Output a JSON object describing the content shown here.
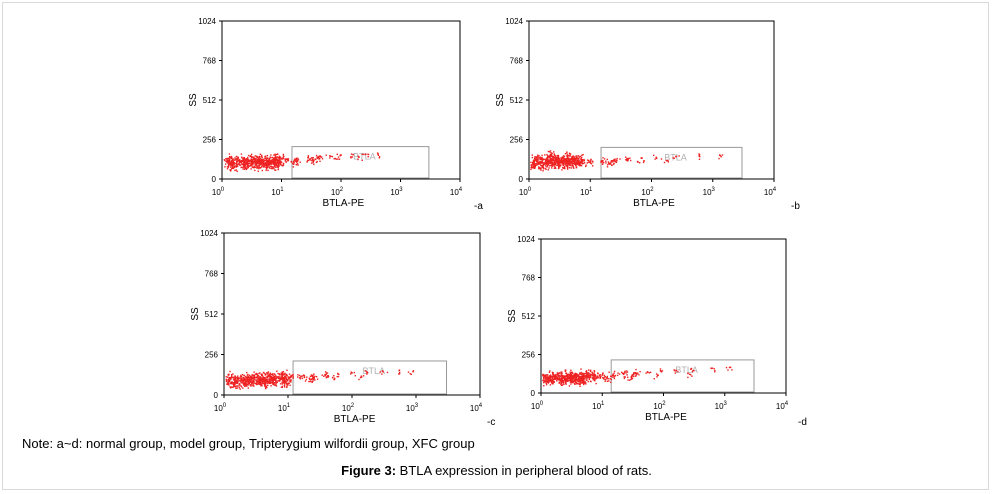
{
  "note": "Note: a~d: normal group, model group, Tripterygium wilfordii group, XFC group",
  "caption": {
    "label": "Figure 3:",
    "text": " BTLA expression in peripheral blood of rats."
  },
  "colors": {
    "points": "#ee2222",
    "gate": "#999999",
    "axis": "#000000"
  },
  "chart_data": [
    {
      "type": "scatter",
      "panel": "-a",
      "xlabel": "BTLA-PE",
      "ylabel": "SS",
      "xscale": "log",
      "xlim": [
        1,
        10000
      ],
      "ylim": [
        0,
        1024
      ],
      "xticks": [
        "10^0",
        "10^1",
        "10^2",
        "10^3",
        "10^4"
      ],
      "yticks": [
        "0",
        "256",
        "512",
        "768",
        "1024"
      ],
      "gate": {
        "label": "BTLA",
        "x": [
          15,
          3000
        ],
        "y": [
          0,
          210
        ]
      },
      "series": [
        {
          "values": [
            [
              1.3,
              121
            ],
            [
              2.1,
              118
            ],
            [
              3.2,
              124
            ],
            [
              4.6,
              119
            ],
            [
              6.3,
              122
            ],
            [
              8.5,
              126
            ],
            [
              12,
              128
            ],
            [
              18,
              132
            ],
            [
              28,
              138
            ],
            [
              42,
              143
            ],
            [
              65,
              150
            ],
            [
              100,
              155
            ],
            [
              160,
              158
            ],
            [
              260,
              160
            ],
            [
              420,
              162
            ]
          ]
        },
        {
          "values": [
            [
              1.5,
              95
            ],
            [
              2.5,
              100
            ],
            [
              3.8,
              105
            ],
            [
              5.5,
              98
            ],
            [
              8,
              103
            ],
            [
              16,
              112
            ],
            [
              35,
              120
            ],
            [
              80,
              132
            ],
            [
              200,
              142
            ]
          ]
        }
      ]
    },
    {
      "type": "scatter",
      "panel": "-b",
      "xlabel": "BTLA-PE",
      "ylabel": "SS",
      "xscale": "log",
      "xlim": [
        1,
        10000
      ],
      "ylim": [
        0,
        1024
      ],
      "xticks": [
        "10^0",
        "10^1",
        "10^2",
        "10^3",
        "10^4"
      ],
      "yticks": [
        "0",
        "256",
        "512",
        "768",
        "1024"
      ],
      "gate": {
        "label": "BTLA",
        "x": [
          15,
          3000
        ],
        "y": [
          0,
          205
        ]
      },
      "series": [
        {
          "values": [
            [
              1.2,
              95
            ],
            [
              1.8,
              102
            ],
            [
              2.6,
              110
            ],
            [
              3.5,
              108
            ],
            [
              4.8,
              112
            ],
            [
              6.5,
              110
            ],
            [
              10,
              115
            ],
            [
              16,
              118
            ],
            [
              25,
              122
            ],
            [
              40,
              128
            ],
            [
              70,
              135
            ],
            [
              120,
              140
            ],
            [
              250,
              146
            ],
            [
              600,
              150
            ],
            [
              1300,
              155
            ]
          ]
        },
        {
          "values": [
            [
              1.4,
              130
            ],
            [
              2.2,
              140
            ],
            [
              3,
              128
            ],
            [
              4.2,
              135
            ],
            [
              5.8,
              125
            ],
            [
              20,
              100
            ],
            [
              60,
              110
            ],
            [
              180,
              120
            ]
          ]
        }
      ]
    },
    {
      "type": "scatter",
      "panel": "-c",
      "xlabel": "BTLA-PE",
      "ylabel": "SS",
      "xscale": "log",
      "xlim": [
        1,
        10000
      ],
      "ylim": [
        0,
        1024
      ],
      "xticks": [
        "10^0",
        "10^1",
        "10^2",
        "10^3",
        "10^4"
      ],
      "yticks": [
        "0",
        "256",
        "512",
        "768",
        "1024"
      ],
      "gate": {
        "label": "BTLA",
        "x": [
          12,
          3000
        ],
        "y": [
          0,
          215
        ]
      },
      "series": [
        {
          "values": [
            [
              1.2,
              100
            ],
            [
              1.9,
              104
            ],
            [
              2.8,
              108
            ],
            [
              4,
              105
            ],
            [
              5.6,
              110
            ],
            [
              7.8,
              112
            ],
            [
              11,
              114
            ],
            [
              16,
              118
            ],
            [
              24,
              122
            ],
            [
              38,
              128
            ],
            [
              60,
              134
            ],
            [
              100,
              140
            ],
            [
              170,
              146
            ],
            [
              300,
              152
            ],
            [
              550,
              156
            ]
          ]
        },
        {
          "values": [
            [
              1.5,
              80
            ],
            [
              2.4,
              85
            ],
            [
              3.6,
              90
            ],
            [
              5,
              86
            ],
            [
              9,
              92
            ],
            [
              22,
              100
            ],
            [
              50,
              110
            ],
            [
              140,
              118
            ],
            [
              900,
              148
            ]
          ]
        }
      ]
    },
    {
      "type": "scatter",
      "panel": "-d",
      "xlabel": "BTLA-PE",
      "ylabel": "SS",
      "xscale": "log",
      "xlim": [
        1,
        10000
      ],
      "ylim": [
        0,
        1024
      ],
      "xticks": [
        "10^0",
        "10^1",
        "10^2",
        "10^3",
        "10^4"
      ],
      "yticks": [
        "0",
        "256",
        "512",
        "768",
        "1024"
      ],
      "gate": {
        "label": "BTLA",
        "x": [
          14,
          3000
        ],
        "y": [
          0,
          220
        ]
      },
      "series": [
        {
          "values": [
            [
              1.2,
              105
            ],
            [
              1.8,
              110
            ],
            [
              2.6,
              112
            ],
            [
              3.6,
              108
            ],
            [
              5,
              114
            ],
            [
              7,
              116
            ],
            [
              10,
              120
            ],
            [
              15,
              124
            ],
            [
              22,
              128
            ],
            [
              35,
              134
            ],
            [
              55,
              140
            ],
            [
              90,
              146
            ],
            [
              150,
              152
            ],
            [
              280,
              158
            ],
            [
              600,
              164
            ],
            [
              1200,
              170
            ]
          ]
        },
        {
          "values": [
            [
              1.4,
              85
            ],
            [
              2.2,
              92
            ],
            [
              3.2,
              96
            ],
            [
              4.5,
              90
            ],
            [
              12,
              100
            ],
            [
              30,
              108
            ],
            [
              80,
              118
            ],
            [
              250,
              130
            ]
          ]
        }
      ]
    }
  ]
}
